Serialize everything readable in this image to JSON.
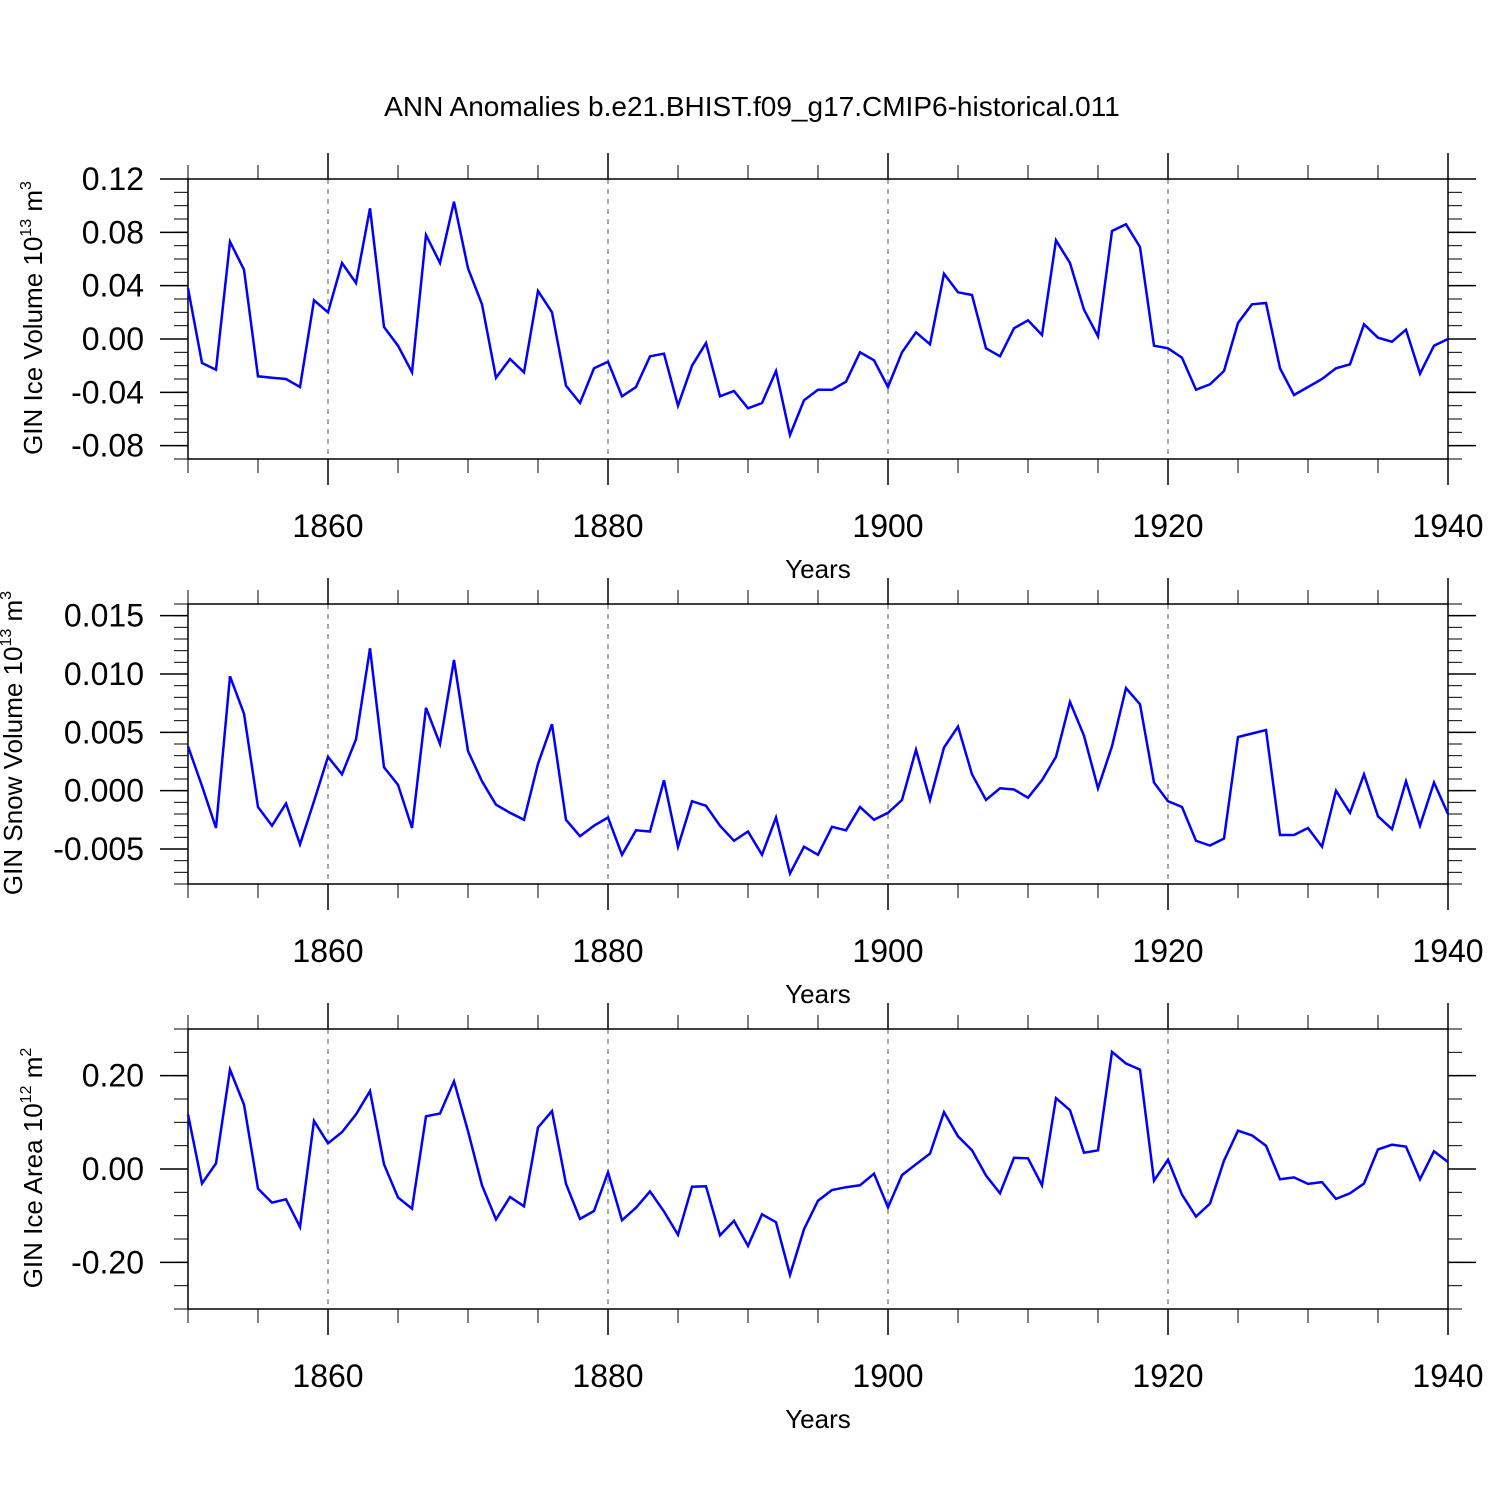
{
  "figure": {
    "title": "ANN Anomalies b.e21.BHIST.f09_g17.CMIP6-historical.011"
  },
  "style": {
    "line_color": "#0000ff",
    "axis_color": "#000000",
    "grid_color": "#555555"
  },
  "chart_data": [
    {
      "type": "line",
      "ylabel": "GIN Ice Volume 10",
      "ylabel_exp": "13",
      "ylabel_unit": "m",
      "ylabel_unit_exp": "3",
      "xlabel": "Years",
      "xlim": [
        1850,
        1940
      ],
      "ylim": [
        -0.09,
        0.12
      ],
      "y_ticks": [
        -0.08,
        -0.04,
        0.0,
        0.04,
        0.08,
        0.12
      ],
      "y_tick_labels": [
        "-0.08",
        "-0.04",
        "0.00",
        "0.04",
        "0.08",
        "0.12"
      ],
      "y_minor_step": 0.01,
      "x_ticks": [
        1860,
        1880,
        1900,
        1920,
        1940
      ],
      "x_tick_labels": [
        "1860",
        "1880",
        "1900",
        "1920",
        "1940"
      ],
      "x_grid": [
        1860,
        1880,
        1900,
        1920
      ],
      "x_start": 1850,
      "values": [
        0.038,
        -0.018,
        -0.023,
        0.073,
        0.052,
        -0.028,
        -0.029,
        -0.03,
        -0.036,
        0.029,
        0.02,
        0.057,
        0.042,
        0.098,
        0.009,
        -0.005,
        -0.025,
        0.078,
        0.057,
        0.103,
        0.053,
        0.026,
        -0.029,
        -0.015,
        -0.025,
        0.036,
        0.02,
        -0.035,
        -0.048,
        -0.022,
        -0.017,
        -0.043,
        -0.036,
        -0.013,
        -0.011,
        -0.05,
        -0.02,
        -0.003,
        -0.043,
        -0.039,
        -0.052,
        -0.048,
        -0.024,
        -0.072,
        -0.046,
        -0.038,
        -0.038,
        -0.032,
        -0.01,
        -0.016,
        -0.036,
        -0.01,
        0.005,
        -0.004,
        0.049,
        0.035,
        0.033,
        -0.007,
        -0.013,
        0.008,
        0.014,
        0.003,
        0.074,
        0.057,
        0.022,
        0.002,
        0.081,
        0.086,
        0.069,
        -0.005,
        -0.007,
        -0.014,
        -0.038,
        -0.034,
        -0.024,
        0.012,
        0.026,
        0.027,
        -0.022,
        -0.042,
        -0.036,
        -0.03,
        -0.022,
        -0.019,
        0.011,
        0.001,
        -0.002,
        0.007,
        -0.026,
        -0.005,
        0.0
      ]
    },
    {
      "type": "line",
      "ylabel": "GIN Snow Volume 10",
      "ylabel_exp": "13",
      "ylabel_unit": "m",
      "ylabel_unit_exp": "3",
      "xlabel": "Years",
      "xlim": [
        1850,
        1940
      ],
      "ylim": [
        -0.008,
        0.016
      ],
      "y_ticks": [
        -0.005,
        0.0,
        0.005,
        0.01,
        0.015
      ],
      "y_tick_labels": [
        "-0.005",
        "0.000",
        "0.005",
        "0.010",
        "0.015"
      ],
      "y_minor_step": 0.001,
      "x_ticks": [
        1860,
        1880,
        1900,
        1920,
        1940
      ],
      "x_tick_labels": [
        "1860",
        "1880",
        "1900",
        "1920",
        "1940"
      ],
      "x_grid": [
        1860,
        1880,
        1900,
        1920
      ],
      "x_start": 1850,
      "values": [
        0.0038,
        0.0004,
        -0.0032,
        0.0098,
        0.0066,
        -0.0014,
        -0.003,
        -0.0011,
        -0.0046,
        -0.0009,
        0.0029,
        0.0014,
        0.0044,
        0.0122,
        0.002,
        0.0005,
        -0.0032,
        0.0071,
        0.004,
        0.0112,
        0.0034,
        0.0008,
        -0.0012,
        -0.0019,
        -0.0025,
        0.0023,
        0.0057,
        -0.0025,
        -0.0039,
        -0.003,
        -0.0023,
        -0.0055,
        -0.0034,
        -0.0035,
        0.0009,
        -0.0048,
        -0.0009,
        -0.0013,
        -0.003,
        -0.0043,
        -0.0035,
        -0.0055,
        -0.0023,
        -0.0071,
        -0.0048,
        -0.0055,
        -0.0031,
        -0.0034,
        -0.0014,
        -0.0025,
        -0.0019,
        -0.0008,
        0.0035,
        -0.0008,
        0.0037,
        0.0055,
        0.0014,
        -0.0008,
        0.0002,
        0.0001,
        -0.0006,
        0.0009,
        0.0029,
        0.0076,
        0.0047,
        0.0002,
        0.0038,
        0.0088,
        0.0074,
        0.0007,
        -0.0009,
        -0.0014,
        -0.0043,
        -0.0047,
        -0.0041,
        0.0046,
        0.0049,
        0.0052,
        -0.0038,
        -0.0038,
        -0.0032,
        -0.0048,
        0.0,
        -0.0019,
        0.0014,
        -0.0022,
        -0.0033,
        0.0008,
        -0.003,
        0.0007,
        -0.002
      ]
    },
    {
      "type": "line",
      "ylabel": "GIN Ice Area 10",
      "ylabel_exp": "12",
      "ylabel_unit": "m",
      "ylabel_unit_exp": "2",
      "xlabel": "Years",
      "xlim": [
        1850,
        1940
      ],
      "ylim": [
        -0.3,
        0.3
      ],
      "y_ticks": [
        -0.2,
        0.0,
        0.2
      ],
      "y_tick_labels": [
        "-0.20",
        "0.00",
        "0.20"
      ],
      "y_minor_step": 0.05,
      "x_ticks": [
        1860,
        1880,
        1900,
        1920,
        1940
      ],
      "x_tick_labels": [
        "1860",
        "1880",
        "1900",
        "1920",
        "1940"
      ],
      "x_grid": [
        1860,
        1880,
        1900,
        1920
      ],
      "x_start": 1850,
      "values": [
        0.117,
        -0.031,
        0.012,
        0.213,
        0.138,
        -0.042,
        -0.072,
        -0.065,
        -0.124,
        0.103,
        0.055,
        0.079,
        0.117,
        0.167,
        0.01,
        -0.061,
        -0.085,
        0.113,
        0.119,
        0.188,
        0.081,
        -0.035,
        -0.108,
        -0.06,
        -0.08,
        0.089,
        0.124,
        -0.032,
        -0.107,
        -0.09,
        -0.007,
        -0.11,
        -0.083,
        -0.048,
        -0.091,
        -0.141,
        -0.038,
        -0.037,
        -0.142,
        -0.111,
        -0.165,
        -0.097,
        -0.114,
        -0.227,
        -0.129,
        -0.068,
        -0.045,
        -0.039,
        -0.035,
        -0.01,
        -0.082,
        -0.013,
        0.01,
        0.033,
        0.122,
        0.07,
        0.04,
        -0.014,
        -0.052,
        0.024,
        0.023,
        -0.035,
        0.152,
        0.126,
        0.035,
        0.04,
        0.251,
        0.226,
        0.213,
        -0.025,
        0.02,
        -0.055,
        -0.102,
        -0.074,
        0.018,
        0.082,
        0.072,
        0.05,
        -0.022,
        -0.018,
        -0.032,
        -0.028,
        -0.064,
        -0.052,
        -0.031,
        0.042,
        0.052,
        0.048,
        -0.022,
        0.038,
        0.015
      ]
    }
  ]
}
